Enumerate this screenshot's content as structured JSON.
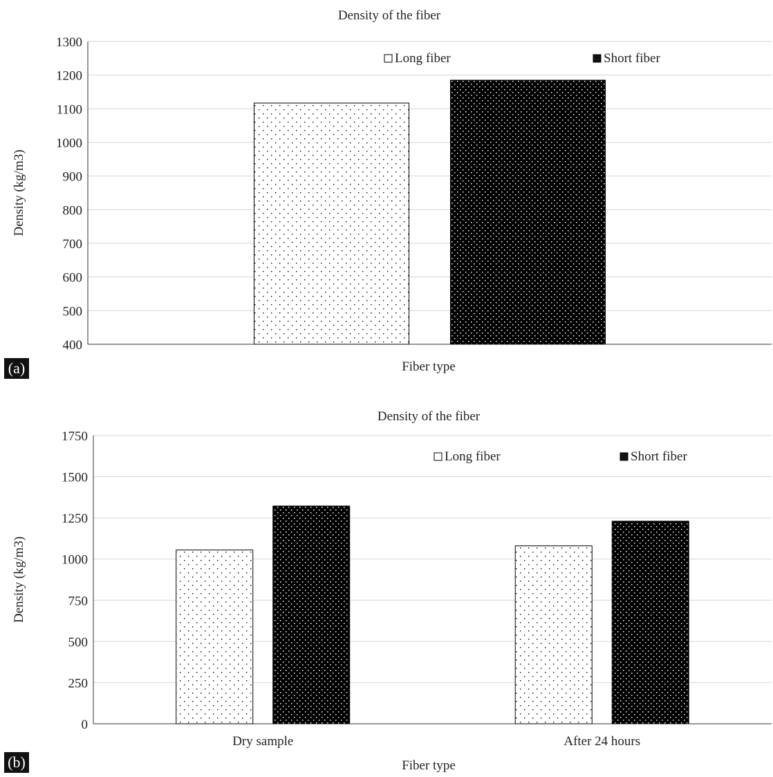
{
  "chart_data": [
    {
      "panel": "(a)",
      "type": "bar",
      "title": "Density of the fiber",
      "xlabel": "Fiber type",
      "ylabel": "Density (kg/m3)",
      "ylim": [
        400,
        1300
      ],
      "yticks": [
        400,
        500,
        600,
        700,
        800,
        900,
        1000,
        1100,
        1200,
        1300
      ],
      "categories": [
        ""
      ],
      "series": [
        {
          "name": "Long fiber",
          "values": [
            1117
          ],
          "pattern": "sparse-dots",
          "color": "#ffffff"
        },
        {
          "name": "Short fiber",
          "values": [
            1185
          ],
          "pattern": "dense-dots",
          "color": "#000000"
        }
      ],
      "grid": true,
      "legend": "top-right"
    },
    {
      "panel": "(b)",
      "type": "bar",
      "title": "Density of the fiber",
      "xlabel": "Fiber type",
      "ylabel": "Density (kg/m3)",
      "ylim": [
        0,
        1750
      ],
      "yticks": [
        0,
        250,
        500,
        750,
        1000,
        1250,
        1500,
        1750
      ],
      "categories": [
        "Dry sample",
        "After 24 hours"
      ],
      "series": [
        {
          "name": "Long fiber",
          "values": [
            1055,
            1080
          ],
          "pattern": "sparse-dots",
          "color": "#ffffff"
        },
        {
          "name": "Short fiber",
          "values": [
            1322,
            1230
          ],
          "pattern": "dense-dots",
          "color": "#000000"
        }
      ],
      "grid": true,
      "legend": "top-right"
    }
  ]
}
